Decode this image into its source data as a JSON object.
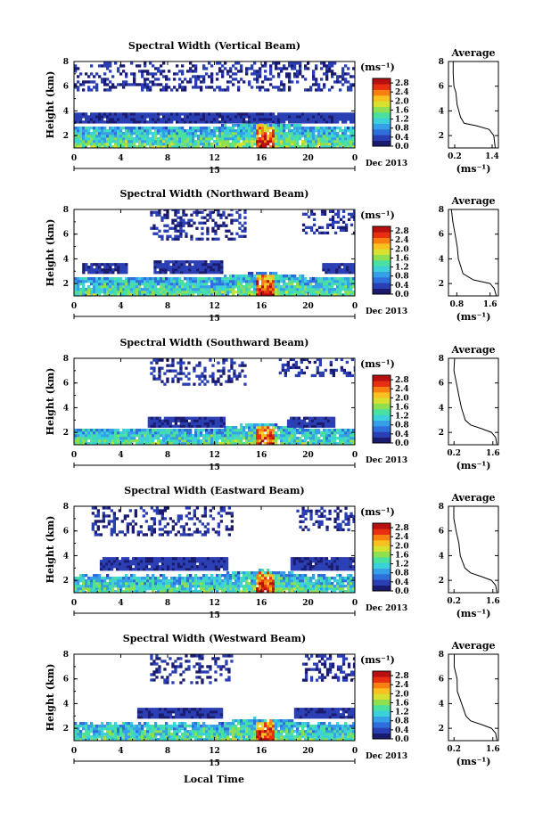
{
  "chart_data": {
    "type": "heatmap",
    "date_label": "Dec 2013",
    "day_label": "15",
    "xlabel_bottom": "Local Time",
    "ylabel": "Height (km)",
    "x_ticks": [
      "0",
      "4",
      "8",
      "12",
      "16",
      "20",
      "0"
    ],
    "y_ticks": [
      "2",
      "4",
      "6",
      "8"
    ],
    "ylim": [
      1,
      8
    ],
    "xlim": [
      0,
      24
    ],
    "colorbar": {
      "unit": "(ms⁻¹)",
      "ticks": [
        "0.0",
        "0.4",
        "0.8",
        "1.2",
        "1.6",
        "2.0",
        "2.4",
        "2.8"
      ],
      "range": [
        0,
        3.0
      ],
      "colors": [
        "#1a1a6e",
        "#2b3fb4",
        "#2f6fdc",
        "#35a0e8",
        "#3cd0d8",
        "#4ae0a0",
        "#8fe050",
        "#d8e030",
        "#f8c020",
        "#f88010",
        "#e83010",
        "#b81010"
      ]
    },
    "panels": [
      {
        "title": "Spectral Width (Vertical Beam)",
        "avg_title": "Average",
        "avg_xticks": [
          "0.2",
          "1.4"
        ],
        "avg_xlim": [
          0,
          1.6
        ],
        "avg_unit": "(ms⁻¹)",
        "upper_layer": [
          {
            "x0": 0,
            "x1": 24,
            "y0": 3.0,
            "y1": 3.8
          }
        ],
        "sparse": [
          {
            "x0": 0,
            "x1": 24,
            "y0": 5.6,
            "y1": 7.8
          }
        ],
        "ground": [
          {
            "x0": 0,
            "x1": 24,
            "top": 2.6
          }
        ],
        "avg_profile": [
          [
            1.5,
            1.0
          ],
          [
            1.45,
            2.0
          ],
          [
            1.3,
            2.5
          ],
          [
            0.9,
            2.8
          ],
          [
            0.5,
            3.0
          ],
          [
            0.4,
            3.5
          ],
          [
            0.35,
            4.0
          ],
          [
            0.3,
            4.5
          ],
          [
            0.25,
            5.0
          ],
          [
            0.22,
            5.5
          ],
          [
            0.2,
            6.0
          ],
          [
            0.18,
            7.0
          ],
          [
            0.15,
            8.0
          ]
        ]
      },
      {
        "title": "Spectral Width (Northward Beam)",
        "avg_title": "Average",
        "avg_xticks": [
          "0.8",
          "1.6"
        ],
        "avg_xlim": [
          0.6,
          1.8
        ],
        "avg_unit": "(ms⁻¹)",
        "upper_layer": [
          {
            "x0": 0.7,
            "x1": 4.4,
            "y0": 2.8,
            "y1": 3.6
          },
          {
            "x0": 6.8,
            "x1": 12.6,
            "y0": 2.8,
            "y1": 3.8
          },
          {
            "x0": 21.2,
            "x1": 24,
            "y0": 2.8,
            "y1": 3.6
          }
        ],
        "sparse": [
          {
            "x0": 6.5,
            "x1": 14.5,
            "y0": 5.5,
            "y1": 7.9
          },
          {
            "x0": 19.5,
            "x1": 24,
            "y0": 6.0,
            "y1": 7.9
          }
        ],
        "ground": [
          {
            "x0": 0,
            "x1": 24,
            "top": 2.4
          }
        ],
        "avg_profile": [
          [
            1.75,
            1.0
          ],
          [
            1.7,
            1.6
          ],
          [
            1.6,
            2.0
          ],
          [
            1.2,
            2.3
          ],
          [
            0.95,
            2.8
          ],
          [
            0.9,
            3.2
          ],
          [
            0.85,
            4.0
          ],
          [
            0.8,
            5.0
          ],
          [
            0.75,
            6.0
          ],
          [
            0.7,
            7.0
          ],
          [
            0.68,
            8.0
          ]
        ]
      },
      {
        "title": "Spectral Width (Southward Beam)",
        "avg_title": "Average",
        "avg_xticks": [
          "0.2",
          "1.6"
        ],
        "avg_xlim": [
          0,
          1.8
        ],
        "avg_unit": "(ms⁻¹)",
        "upper_layer": [
          {
            "x0": 6.3,
            "x1": 12.8,
            "y0": 2.4,
            "y1": 3.2
          },
          {
            "x0": 18.2,
            "x1": 22.2,
            "y0": 2.4,
            "y1": 3.2
          }
        ],
        "sparse": [
          {
            "x0": 6.5,
            "x1": 14.5,
            "y0": 5.8,
            "y1": 7.9
          },
          {
            "x0": 17.5,
            "x1": 24,
            "y0": 6.5,
            "y1": 7.9
          }
        ],
        "ground": [
          {
            "x0": 0,
            "x1": 24,
            "top": 2.2
          }
        ],
        "avg_profile": [
          [
            1.75,
            1.0
          ],
          [
            1.7,
            1.6
          ],
          [
            1.55,
            2.0
          ],
          [
            1.2,
            2.3
          ],
          [
            0.8,
            2.6
          ],
          [
            0.6,
            3.0
          ],
          [
            0.45,
            4.0
          ],
          [
            0.35,
            5.0
          ],
          [
            0.3,
            6.0
          ],
          [
            0.22,
            7.0
          ],
          [
            0.2,
            8.0
          ]
        ]
      },
      {
        "title": "Spectral Width (Eastward Beam)",
        "avg_title": "Average",
        "avg_xticks": [
          "0.2",
          "1.6"
        ],
        "avg_xlim": [
          0,
          1.8
        ],
        "avg_unit": "(ms⁻¹)",
        "upper_layer": [
          {
            "x0": 2.2,
            "x1": 13.0,
            "y0": 2.8,
            "y1": 3.7
          },
          {
            "x0": 18.5,
            "x1": 24,
            "y0": 2.8,
            "y1": 3.7
          }
        ],
        "sparse": [
          {
            "x0": 1.5,
            "x1": 13.5,
            "y0": 5.6,
            "y1": 7.9
          },
          {
            "x0": 19.0,
            "x1": 24,
            "y0": 6.0,
            "y1": 7.9
          }
        ],
        "ground": [
          {
            "x0": 0,
            "x1": 24,
            "top": 2.3
          }
        ],
        "avg_profile": [
          [
            1.75,
            1.0
          ],
          [
            1.7,
            1.6
          ],
          [
            1.55,
            2.0
          ],
          [
            1.2,
            2.3
          ],
          [
            0.8,
            2.6
          ],
          [
            0.6,
            3.0
          ],
          [
            0.45,
            4.0
          ],
          [
            0.35,
            5.0
          ],
          [
            0.3,
            6.0
          ],
          [
            0.22,
            7.0
          ],
          [
            0.2,
            8.0
          ]
        ]
      },
      {
        "title": "Spectral Width (Westward Beam)",
        "avg_title": "Average",
        "avg_xticks": [
          "0.2",
          "1.6"
        ],
        "avg_xlim": [
          0,
          1.8
        ],
        "avg_unit": "(ms⁻¹)",
        "upper_layer": [
          {
            "x0": 5.4,
            "x1": 12.6,
            "y0": 2.8,
            "y1": 3.6
          },
          {
            "x0": 18.8,
            "x1": 24,
            "y0": 2.8,
            "y1": 3.6
          }
        ],
        "sparse": [
          {
            "x0": 6.5,
            "x1": 13.5,
            "y0": 5.6,
            "y1": 7.9
          },
          {
            "x0": 19.5,
            "x1": 24,
            "y0": 5.8,
            "y1": 7.9
          }
        ],
        "ground": [
          {
            "x0": 0,
            "x1": 24,
            "top": 2.3
          }
        ],
        "avg_profile": [
          [
            1.75,
            1.0
          ],
          [
            1.7,
            1.6
          ],
          [
            1.55,
            2.0
          ],
          [
            1.2,
            2.3
          ],
          [
            0.8,
            2.6
          ],
          [
            0.6,
            3.0
          ],
          [
            0.45,
            4.0
          ],
          [
            0.35,
            5.0
          ],
          [
            0.3,
            6.0
          ],
          [
            0.22,
            7.0
          ],
          [
            0.2,
            8.0
          ]
        ]
      }
    ]
  }
}
